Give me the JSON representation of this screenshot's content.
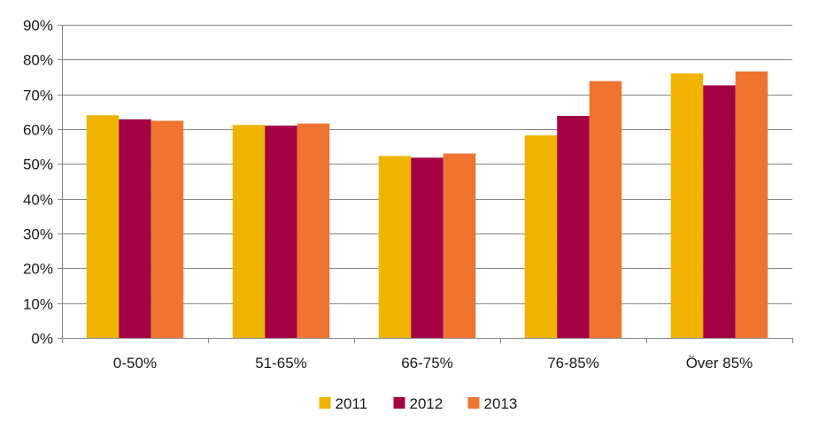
{
  "chart_data": {
    "type": "bar",
    "title": "",
    "xlabel": "",
    "ylabel": "",
    "categories": [
      "0-50%",
      "51-65%",
      "66-75%",
      "76-85%",
      "Över 85%"
    ],
    "series": [
      {
        "name": "2011",
        "color": "#f0b400",
        "values": [
          64,
          61.2,
          52.3,
          58.2,
          76
        ]
      },
      {
        "name": "2012",
        "color": "#a50044",
        "values": [
          62.8,
          61,
          51.8,
          63.8,
          72.6
        ]
      },
      {
        "name": "2013",
        "color": "#ee7430",
        "values": [
          62.4,
          61.6,
          53,
          73.8,
          76.6
        ]
      }
    ],
    "ylim": [
      0,
      90
    ],
    "ytick_step": 10,
    "ytick_labels": [
      "0%",
      "10%",
      "20%",
      "30%",
      "40%",
      "50%",
      "60%",
      "70%",
      "80%",
      "90%"
    ],
    "grid": true,
    "legend_position": "bottom-center",
    "colors": {
      "grid": "#868686",
      "axis": "#868686"
    }
  }
}
